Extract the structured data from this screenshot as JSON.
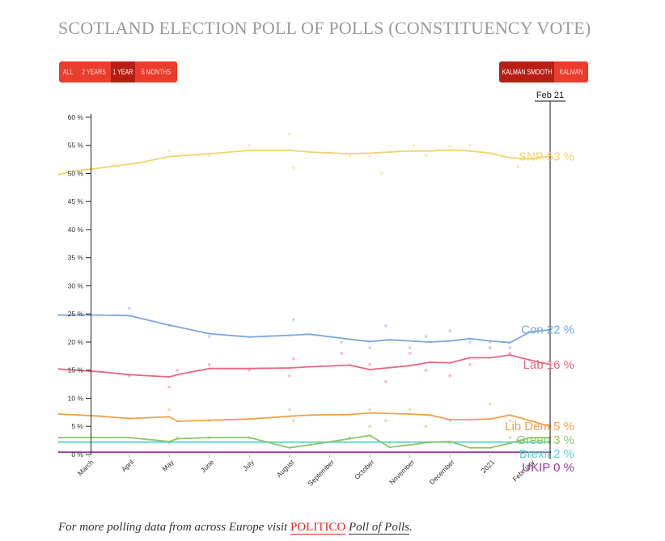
{
  "title": "SCOTLAND ELECTION POLL OF POLLS (CONSTITUENCY VOTE)",
  "range_buttons": [
    {
      "label": "ALL",
      "active": false
    },
    {
      "label": "2 YEARS",
      "active": false
    },
    {
      "label": "1 YEAR",
      "active": true
    },
    {
      "label": "6 MONTHS",
      "active": false
    }
  ],
  "smoothing_buttons": [
    {
      "label": "KALMAN SMOOTH",
      "active": true
    },
    {
      "label": "KALMAN",
      "active": false
    }
  ],
  "footer": {
    "text": "For more polling data from across Europe visit",
    "link_label": "POLITICO",
    "link_tail": "Poll of Polls",
    "end": "."
  },
  "chart_data": {
    "type": "line",
    "title": "SCOTLAND ELECTION POLL OF POLLS (CONSTITUENCY VOTE)",
    "x_labels": [
      "March",
      "April",
      "May",
      "June",
      "July",
      "August",
      "September",
      "October",
      "November",
      "December",
      "2021",
      "February"
    ],
    "x_label_months": [
      2.0,
      3.0,
      4.0,
      5.0,
      6.0,
      7.0,
      8.0,
      9.0,
      10.0,
      11.0,
      12.0,
      13.0
    ],
    "x_range_months": [
      1.25,
      13.5
    ],
    "y_ticks": [
      "0 %",
      "5 %",
      "10 %",
      "15 %",
      "20 %",
      "25 %",
      "30 %",
      "35 %",
      "40 %",
      "45 %",
      "50 %",
      "55 %",
      "60 %"
    ],
    "ylim": [
      0,
      61
    ],
    "marker_label": "Feb 21",
    "marker_month": 13.5,
    "grid": false,
    "series": [
      {
        "name": "SNP",
        "value_label": "53 %",
        "color": "#f3d36b",
        "x": [
          1.25,
          1.5,
          2.3,
          3.2,
          4.0,
          5.0,
          6.0,
          7.0,
          7.5,
          8.5,
          9.0,
          10.0,
          10.5,
          11.0,
          11.5,
          12.0,
          12.5,
          13.0,
          13.5
        ],
        "y": [
          49.8,
          50.3,
          51.0,
          51.8,
          53.0,
          53.5,
          54.1,
          54.1,
          53.8,
          53.5,
          53.6,
          54.0,
          54.0,
          54.2,
          54.0,
          53.6,
          52.8,
          52.6,
          53.0
        ],
        "polls": {
          "x": [
            2.6,
            4.0,
            5.0,
            6.0,
            7.0,
            7.1,
            8.5,
            9.0,
            9.3,
            10.1,
            10.4,
            11.0,
            11.5,
            12.3,
            12.7
          ],
          "y": [
            51.5,
            54.0,
            53.2,
            55.0,
            57.0,
            51.0,
            53.2,
            53.0,
            50.0,
            55.0,
            53.2,
            54.8,
            55.0,
            53.0,
            51.2
          ]
        }
      },
      {
        "name": "Con",
        "value_label": "22 %",
        "color": "#7aa7e4",
        "x": [
          1.25,
          2.3,
          3.0,
          4.0,
          5.0,
          6.0,
          7.0,
          7.5,
          8.5,
          9.0,
          9.5,
          10.5,
          11.0,
          11.5,
          12.0,
          12.5,
          13.0,
          13.5
        ],
        "y": [
          24.8,
          24.8,
          24.7,
          23.0,
          21.5,
          20.9,
          21.2,
          21.4,
          20.5,
          20.1,
          20.4,
          20.0,
          20.2,
          20.6,
          20.2,
          19.9,
          21.8,
          22.2
        ],
        "polls": {
          "x": [
            3.0,
            4.0,
            5.0,
            7.1,
            8.3,
            9.0,
            9.4,
            10.0,
            10.4,
            11.0,
            11.5,
            12.0,
            12.5
          ],
          "y": [
            26.0,
            23.0,
            21.0,
            24.0,
            20.0,
            19.0,
            22.9,
            19.0,
            21.0,
            22.0,
            20.0,
            20.0,
            19.0
          ]
        }
      },
      {
        "name": "Lab",
        "value_label": "16 %",
        "color": "#e8677f",
        "x": [
          1.25,
          2.3,
          3.0,
          4.0,
          4.2,
          5.0,
          6.0,
          7.0,
          7.5,
          8.5,
          9.0,
          10.0,
          10.5,
          11.0,
          11.5,
          12.0,
          12.5,
          13.0,
          13.5
        ],
        "y": [
          15.2,
          14.7,
          14.2,
          13.8,
          14.2,
          15.3,
          15.3,
          15.4,
          15.6,
          15.9,
          15.1,
          15.8,
          16.4,
          16.3,
          17.2,
          17.2,
          17.7,
          16.8,
          16.0
        ],
        "polls": {
          "x": [
            3.0,
            4.0,
            4.2,
            5.0,
            6.0,
            7.0,
            7.1,
            8.3,
            9.0,
            9.4,
            10.0,
            10.4,
            11.0,
            11.5,
            12.0,
            12.5
          ],
          "y": [
            14.0,
            12.0,
            15.0,
            16.0,
            15.0,
            14.0,
            17.0,
            18.0,
            16.0,
            13.0,
            18.0,
            15.0,
            14.0,
            16.0,
            19.0,
            18.0
          ]
        }
      },
      {
        "name": "Lib Dem",
        "value_label": "5 %",
        "color": "#f2a04d",
        "x": [
          1.25,
          2.3,
          3.0,
          4.0,
          4.2,
          5.0,
          6.0,
          7.0,
          7.5,
          8.5,
          9.0,
          10.0,
          10.5,
          11.0,
          11.5,
          12.0,
          12.5,
          13.0,
          13.5
        ],
        "y": [
          7.2,
          6.8,
          6.4,
          6.7,
          5.9,
          6.1,
          6.3,
          6.8,
          7.0,
          7.1,
          7.4,
          7.2,
          7.0,
          6.2,
          6.2,
          6.3,
          7.0,
          6.0,
          5.0
        ],
        "polls": {
          "x": [
            4.0,
            5.0,
            7.0,
            7.1,
            8.3,
            9.0,
            9.4,
            10.0,
            10.4,
            11.0,
            12.0,
            12.5
          ],
          "y": [
            8.0,
            6.0,
            8.0,
            6.0,
            7.0,
            8.0,
            6.0,
            8.0,
            5.0,
            6.0,
            9.0,
            6.0
          ]
        }
      },
      {
        "name": "Green",
        "value_label": "3 %",
        "color": "#8cc56a",
        "x": [
          1.25,
          2.3,
          3.0,
          4.0,
          4.2,
          5.0,
          6.0,
          7.0,
          7.5,
          8.5,
          9.0,
          9.5,
          10.0,
          10.5,
          11.0,
          11.5,
          12.0,
          12.5,
          13.0,
          13.5
        ],
        "y": [
          3.0,
          3.0,
          3.0,
          2.3,
          2.8,
          3.0,
          3.0,
          1.2,
          1.7,
          2.8,
          3.4,
          1.3,
          1.7,
          2.2,
          2.3,
          1.2,
          1.2,
          2.0,
          3.0,
          3.0
        ],
        "polls": {
          "x": [
            4.0,
            4.2,
            5.0,
            6.0,
            8.5,
            9.0,
            9.5,
            11.0,
            12.5
          ],
          "y": [
            2.0,
            3.0,
            3.0,
            3.0,
            3.0,
            5.0,
            2.0,
            2.0,
            3.0
          ]
        }
      },
      {
        "name": "Brexit",
        "value_label": "2 %",
        "color": "#56d8c9",
        "x": [
          1.25,
          13.5
        ],
        "y": [
          2.2,
          2.2
        ],
        "polls": {
          "x": [],
          "y": []
        }
      },
      {
        "name": "UKIP",
        "value_label": "0 %",
        "color": "#9b3b9a",
        "x": [
          1.25,
          13.5
        ],
        "y": [
          0.4,
          0.4
        ],
        "polls": {
          "x": [],
          "y": []
        }
      }
    ]
  }
}
